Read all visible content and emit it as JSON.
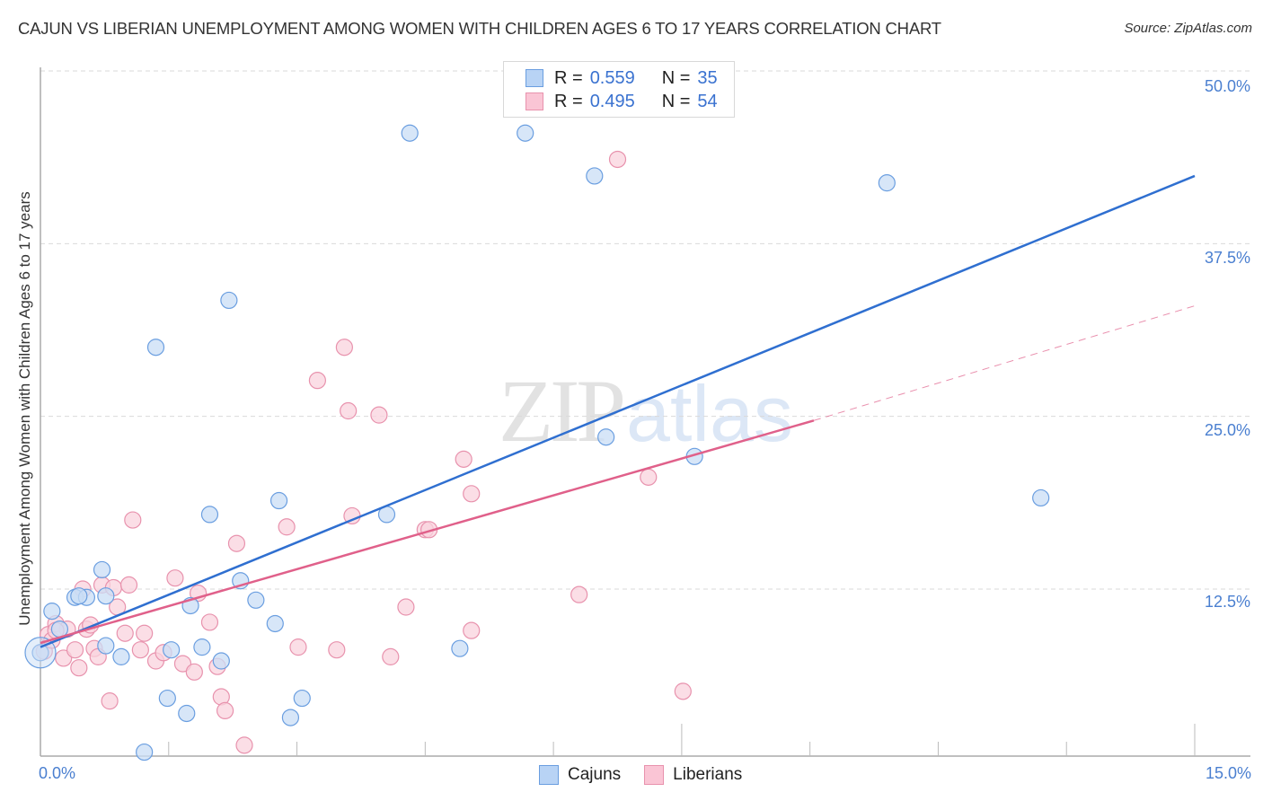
{
  "header": {
    "title": "CAJUN VS LIBERIAN UNEMPLOYMENT AMONG WOMEN WITH CHILDREN AGES 6 TO 17 YEARS CORRELATION CHART",
    "source": "Source: ZipAtlas.com"
  },
  "watermark": {
    "zip": "ZIP",
    "atlas": "atlas"
  },
  "axes": {
    "ylabel": "Unemployment Among Women with Children Ages 6 to 17 years",
    "yticks": [
      "50.0%",
      "37.5%",
      "25.0%",
      "12.5%"
    ],
    "xticks": [
      "0.0%",
      "15.0%"
    ]
  },
  "legend_top": {
    "rows": [
      {
        "r_label": "R =",
        "r_value": "0.559",
        "n_label": "N =",
        "n_value": "35",
        "color": "#b8d3f5",
        "border": "#6a9ee0"
      },
      {
        "r_label": "R =",
        "r_value": "0.495",
        "n_label": "N =",
        "n_value": "54",
        "color": "#fac5d5",
        "border": "#e892ad"
      }
    ]
  },
  "legend_bottom": {
    "items": [
      {
        "label": "Cajuns",
        "color": "#b8d3f5",
        "border": "#6a9ee0"
      },
      {
        "label": "Liberians",
        "color": "#fac5d5",
        "border": "#e892ad"
      }
    ]
  },
  "colors": {
    "cajun_fill": "#c9ddf6",
    "cajun_stroke": "#6a9ee0",
    "cajun_line": "#2f6fd0",
    "liberian_fill": "#fad3de",
    "liberian_stroke": "#e892ad",
    "liberian_line": "#e0608a",
    "grid": "#d9d9d9",
    "tick_text": "#4a7fd0"
  },
  "chart_data": {
    "type": "scatter",
    "title": "CAJUN VS LIBERIAN UNEMPLOYMENT AMONG WOMEN WITH CHILDREN AGES 6 TO 17 YEARS CORRELATION CHART",
    "xlabel": "",
    "ylabel": "Unemployment Among Women with Children Ages 6 to 17 years",
    "xlim": [
      0,
      15
    ],
    "ylim": [
      0,
      50
    ],
    "x_ticks": [
      0,
      15
    ],
    "y_ticks": [
      12.5,
      25.0,
      37.5,
      50.0
    ],
    "grid": true,
    "legend_position": "top-center and bottom",
    "series": [
      {
        "name": "Cajuns",
        "R": 0.559,
        "N": 35,
        "trend": {
          "x": [
            0,
            15
          ],
          "y": [
            8.3,
            42.4
          ]
        },
        "points": [
          [
            0.0,
            7.9
          ],
          [
            0.15,
            10.9
          ],
          [
            0.25,
            9.6
          ],
          [
            0.45,
            11.9
          ],
          [
            0.6,
            11.9
          ],
          [
            0.8,
            13.9
          ],
          [
            0.85,
            12.0
          ],
          [
            1.05,
            7.6
          ],
          [
            1.35,
            0.7
          ],
          [
            1.5,
            30.0
          ],
          [
            1.65,
            4.6
          ],
          [
            1.7,
            8.1
          ],
          [
            1.9,
            3.5
          ],
          [
            1.95,
            11.3
          ],
          [
            2.1,
            8.3
          ],
          [
            2.2,
            17.9
          ],
          [
            2.35,
            7.3
          ],
          [
            2.45,
            33.4
          ],
          [
            2.6,
            13.1
          ],
          [
            2.8,
            11.7
          ],
          [
            3.05,
            10.0
          ],
          [
            3.1,
            18.9
          ],
          [
            3.25,
            3.2
          ],
          [
            3.4,
            4.6
          ],
          [
            4.5,
            17.9
          ],
          [
            4.8,
            45.5
          ],
          [
            5.45,
            8.2
          ],
          [
            6.3,
            45.5
          ],
          [
            7.2,
            42.4
          ],
          [
            7.35,
            23.5
          ],
          [
            8.5,
            22.1
          ],
          [
            11.0,
            41.9
          ],
          [
            13.0,
            19.1
          ],
          [
            0.5,
            12.0
          ],
          [
            0.85,
            8.4
          ]
        ]
      },
      {
        "name": "Liberians",
        "R": 0.495,
        "N": 54,
        "trend": {
          "x": [
            0,
            10.05,
            15
          ],
          "y": [
            8.6,
            24.7,
            33.0
          ],
          "solid_until_x": 10.05,
          "dashed_beyond": true
        },
        "points": [
          [
            0.05,
            8.0
          ],
          [
            0.1,
            9.2
          ],
          [
            0.15,
            8.8
          ],
          [
            0.2,
            10.0
          ],
          [
            0.3,
            7.5
          ],
          [
            0.35,
            9.6
          ],
          [
            0.45,
            8.1
          ],
          [
            0.5,
            6.8
          ],
          [
            0.55,
            12.5
          ],
          [
            0.6,
            9.6
          ],
          [
            0.7,
            8.2
          ],
          [
            0.75,
            7.6
          ],
          [
            0.8,
            12.8
          ],
          [
            0.9,
            4.4
          ],
          [
            0.95,
            12.6
          ],
          [
            1.0,
            11.2
          ],
          [
            1.1,
            9.3
          ],
          [
            1.15,
            12.8
          ],
          [
            1.2,
            17.5
          ],
          [
            1.3,
            8.1
          ],
          [
            1.35,
            9.3
          ],
          [
            1.5,
            7.3
          ],
          [
            1.6,
            7.9
          ],
          [
            1.75,
            13.3
          ],
          [
            1.85,
            7.1
          ],
          [
            2.0,
            6.5
          ],
          [
            2.05,
            12.2
          ],
          [
            2.2,
            10.1
          ],
          [
            2.3,
            6.9
          ],
          [
            2.35,
            4.7
          ],
          [
            2.4,
            3.7
          ],
          [
            2.55,
            15.8
          ],
          [
            2.65,
            1.2
          ],
          [
            3.2,
            17.0
          ],
          [
            3.35,
            8.3
          ],
          [
            3.6,
            27.6
          ],
          [
            3.85,
            8.1
          ],
          [
            3.95,
            30.0
          ],
          [
            4.0,
            25.4
          ],
          [
            4.05,
            17.8
          ],
          [
            4.4,
            25.1
          ],
          [
            4.55,
            7.6
          ],
          [
            4.75,
            11.2
          ],
          [
            5.0,
            16.8
          ],
          [
            5.05,
            16.8
          ],
          [
            5.5,
            21.9
          ],
          [
            5.6,
            9.5
          ],
          [
            5.6,
            19.4
          ],
          [
            7.0,
            12.1
          ],
          [
            7.5,
            43.6
          ],
          [
            7.9,
            20.6
          ],
          [
            8.35,
            5.1
          ],
          [
            0.2,
            9.5
          ],
          [
            0.65,
            9.9
          ]
        ]
      }
    ]
  }
}
